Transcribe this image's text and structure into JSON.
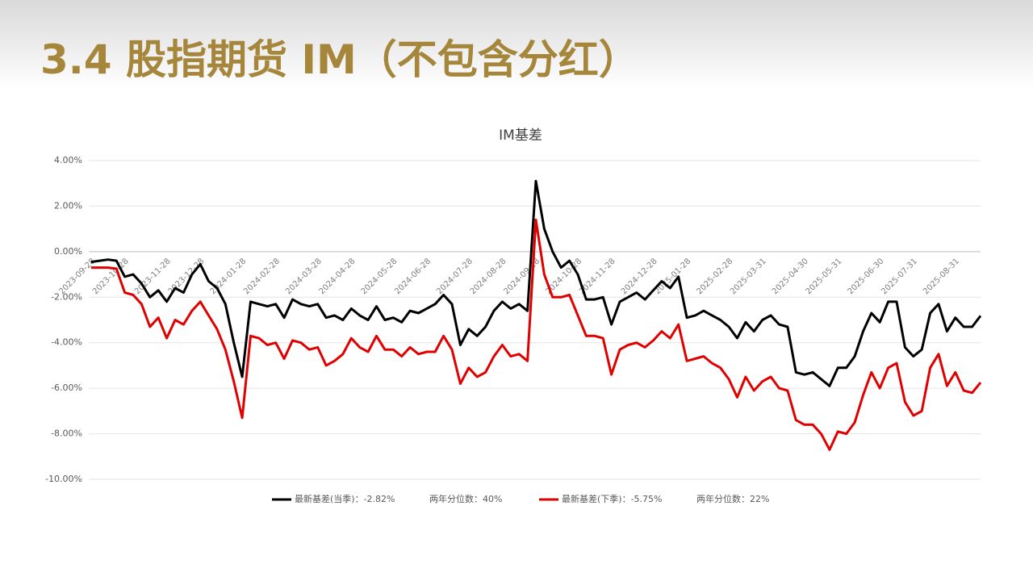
{
  "header": {
    "title": "3.4 股指期货 IM（不包含分红）"
  },
  "chart_data": {
    "type": "line",
    "title": "IM基差",
    "categories": [
      "2023-09-28",
      null,
      null,
      null,
      "2023-10-28",
      null,
      null,
      null,
      null,
      "2023-11-28",
      null,
      null,
      null,
      "2023-12-28",
      null,
      null,
      null,
      null,
      "2024-01-28",
      null,
      null,
      null,
      "2024-02-28",
      null,
      null,
      null,
      null,
      "2024-03-28",
      null,
      null,
      null,
      "2024-04-28",
      null,
      null,
      null,
      null,
      "2024-05-28",
      null,
      null,
      null,
      "2024-06-28",
      null,
      null,
      null,
      null,
      "2024-07-28",
      null,
      null,
      null,
      "2024-08-28",
      null,
      null,
      null,
      "2024-09-28",
      null,
      null,
      null,
      null,
      "2024-10-28",
      null,
      null,
      null,
      "2024-11-28",
      null,
      null,
      null,
      null,
      "2024-12-28",
      null,
      null,
      null,
      "2025-01-28",
      null,
      null,
      null,
      null,
      "2025-02-28",
      null,
      null,
      null,
      "2025-03-31",
      null,
      null,
      null,
      null,
      "2025-04-30",
      null,
      null,
      null,
      "2025-05-31",
      null,
      null,
      null,
      null,
      "2025-06-30",
      null,
      null,
      null,
      "2025-07-31",
      null,
      null,
      null,
      null,
      "2025-08-31",
      null,
      null,
      null
    ],
    "series": [
      {
        "name": "最新基差(当季)：-2.82%",
        "color": "#000000",
        "values": [
          -0.45,
          -0.4,
          -0.35,
          -0.4,
          -1.1,
          -1.0,
          -1.4,
          -2.0,
          -1.7,
          -2.2,
          -1.6,
          -1.8,
          -1.0,
          -0.55,
          -1.3,
          -1.6,
          -2.3,
          -4.0,
          -5.5,
          -2.2,
          -2.3,
          -2.4,
          -2.3,
          -2.9,
          -2.1,
          -2.3,
          -2.4,
          -2.3,
          -2.9,
          -2.8,
          -3.0,
          -2.5,
          -2.8,
          -3.0,
          -2.4,
          -3.0,
          -2.9,
          -3.1,
          -2.6,
          -2.7,
          -2.5,
          -2.3,
          -1.9,
          -2.3,
          -4.1,
          -3.4,
          -3.7,
          -3.3,
          -2.6,
          -2.2,
          -2.5,
          -2.3,
          -2.6,
          3.1,
          1.0,
          0.0,
          -0.7,
          -0.4,
          -1.0,
          -2.1,
          -2.1,
          -2.0,
          -3.2,
          -2.2,
          -2.0,
          -1.8,
          -2.1,
          -1.7,
          -1.3,
          -1.6,
          -1.1,
          -2.9,
          -2.8,
          -2.6,
          -2.8,
          -3.0,
          -3.3,
          -3.8,
          -3.1,
          -3.5,
          -3.0,
          -2.8,
          -3.2,
          -3.3,
          -5.3,
          -5.4,
          -5.3,
          -5.6,
          -5.9,
          -5.1,
          -5.1,
          -4.6,
          -3.5,
          -2.7,
          -3.1,
          -2.2,
          -2.2,
          -4.2,
          -4.6,
          -4.3,
          -2.7,
          -2.3,
          -3.5,
          -2.9,
          -3.3,
          -3.3,
          -2.82
        ],
        "percentile": "两年分位数：40%"
      },
      {
        "name": "最新基差(下季)：-5.75%",
        "color": "#e00000",
        "values": [
          -0.7,
          -0.7,
          -0.7,
          -0.75,
          -1.8,
          -1.9,
          -2.3,
          -3.3,
          -2.9,
          -3.8,
          -3.0,
          -3.2,
          -2.6,
          -2.2,
          -2.8,
          -3.4,
          -4.3,
          -5.7,
          -7.3,
          -3.7,
          -3.8,
          -4.1,
          -4.0,
          -4.7,
          -3.9,
          -4.0,
          -4.3,
          -4.2,
          -5.0,
          -4.8,
          -4.5,
          -3.8,
          -4.2,
          -4.4,
          -3.7,
          -4.3,
          -4.3,
          -4.6,
          -4.2,
          -4.5,
          -4.4,
          -4.4,
          -3.7,
          -4.3,
          -5.8,
          -5.1,
          -5.5,
          -5.3,
          -4.6,
          -4.1,
          -4.6,
          -4.5,
          -4.8,
          1.4,
          -1.0,
          -2.0,
          -2.0,
          -1.9,
          -2.8,
          -3.7,
          -3.7,
          -3.8,
          -5.4,
          -4.3,
          -4.1,
          -4.0,
          -4.2,
          -3.9,
          -3.5,
          -3.8,
          -3.2,
          -4.8,
          -4.7,
          -4.6,
          -4.9,
          -5.1,
          -5.6,
          -6.4,
          -5.5,
          -6.1,
          -5.7,
          -5.5,
          -6.0,
          -6.1,
          -7.4,
          -7.6,
          -7.6,
          -8.0,
          -8.7,
          -7.9,
          -8.0,
          -7.5,
          -6.3,
          -5.3,
          -6.0,
          -5.1,
          -4.9,
          -6.6,
          -7.2,
          -7.0,
          -5.1,
          -4.5,
          -5.9,
          -5.3,
          -6.1,
          -6.2,
          -5.75
        ],
        "percentile": "两年分位数：22%"
      }
    ],
    "ylim": [
      -10,
      4
    ],
    "yticks": [
      {
        "value": -10,
        "label": "-10.00%"
      },
      {
        "value": -8,
        "label": "-8.00%"
      },
      {
        "value": -6,
        "label": "-6.00%"
      },
      {
        "value": -4,
        "label": "-4.00%"
      },
      {
        "value": -2,
        "label": "-2.00%"
      },
      {
        "value": 0,
        "label": "0.00%"
      },
      {
        "value": 2,
        "label": "2.00%"
      },
      {
        "value": 4,
        "label": "4.00%"
      }
    ],
    "grid": true,
    "legend": "bottom"
  }
}
